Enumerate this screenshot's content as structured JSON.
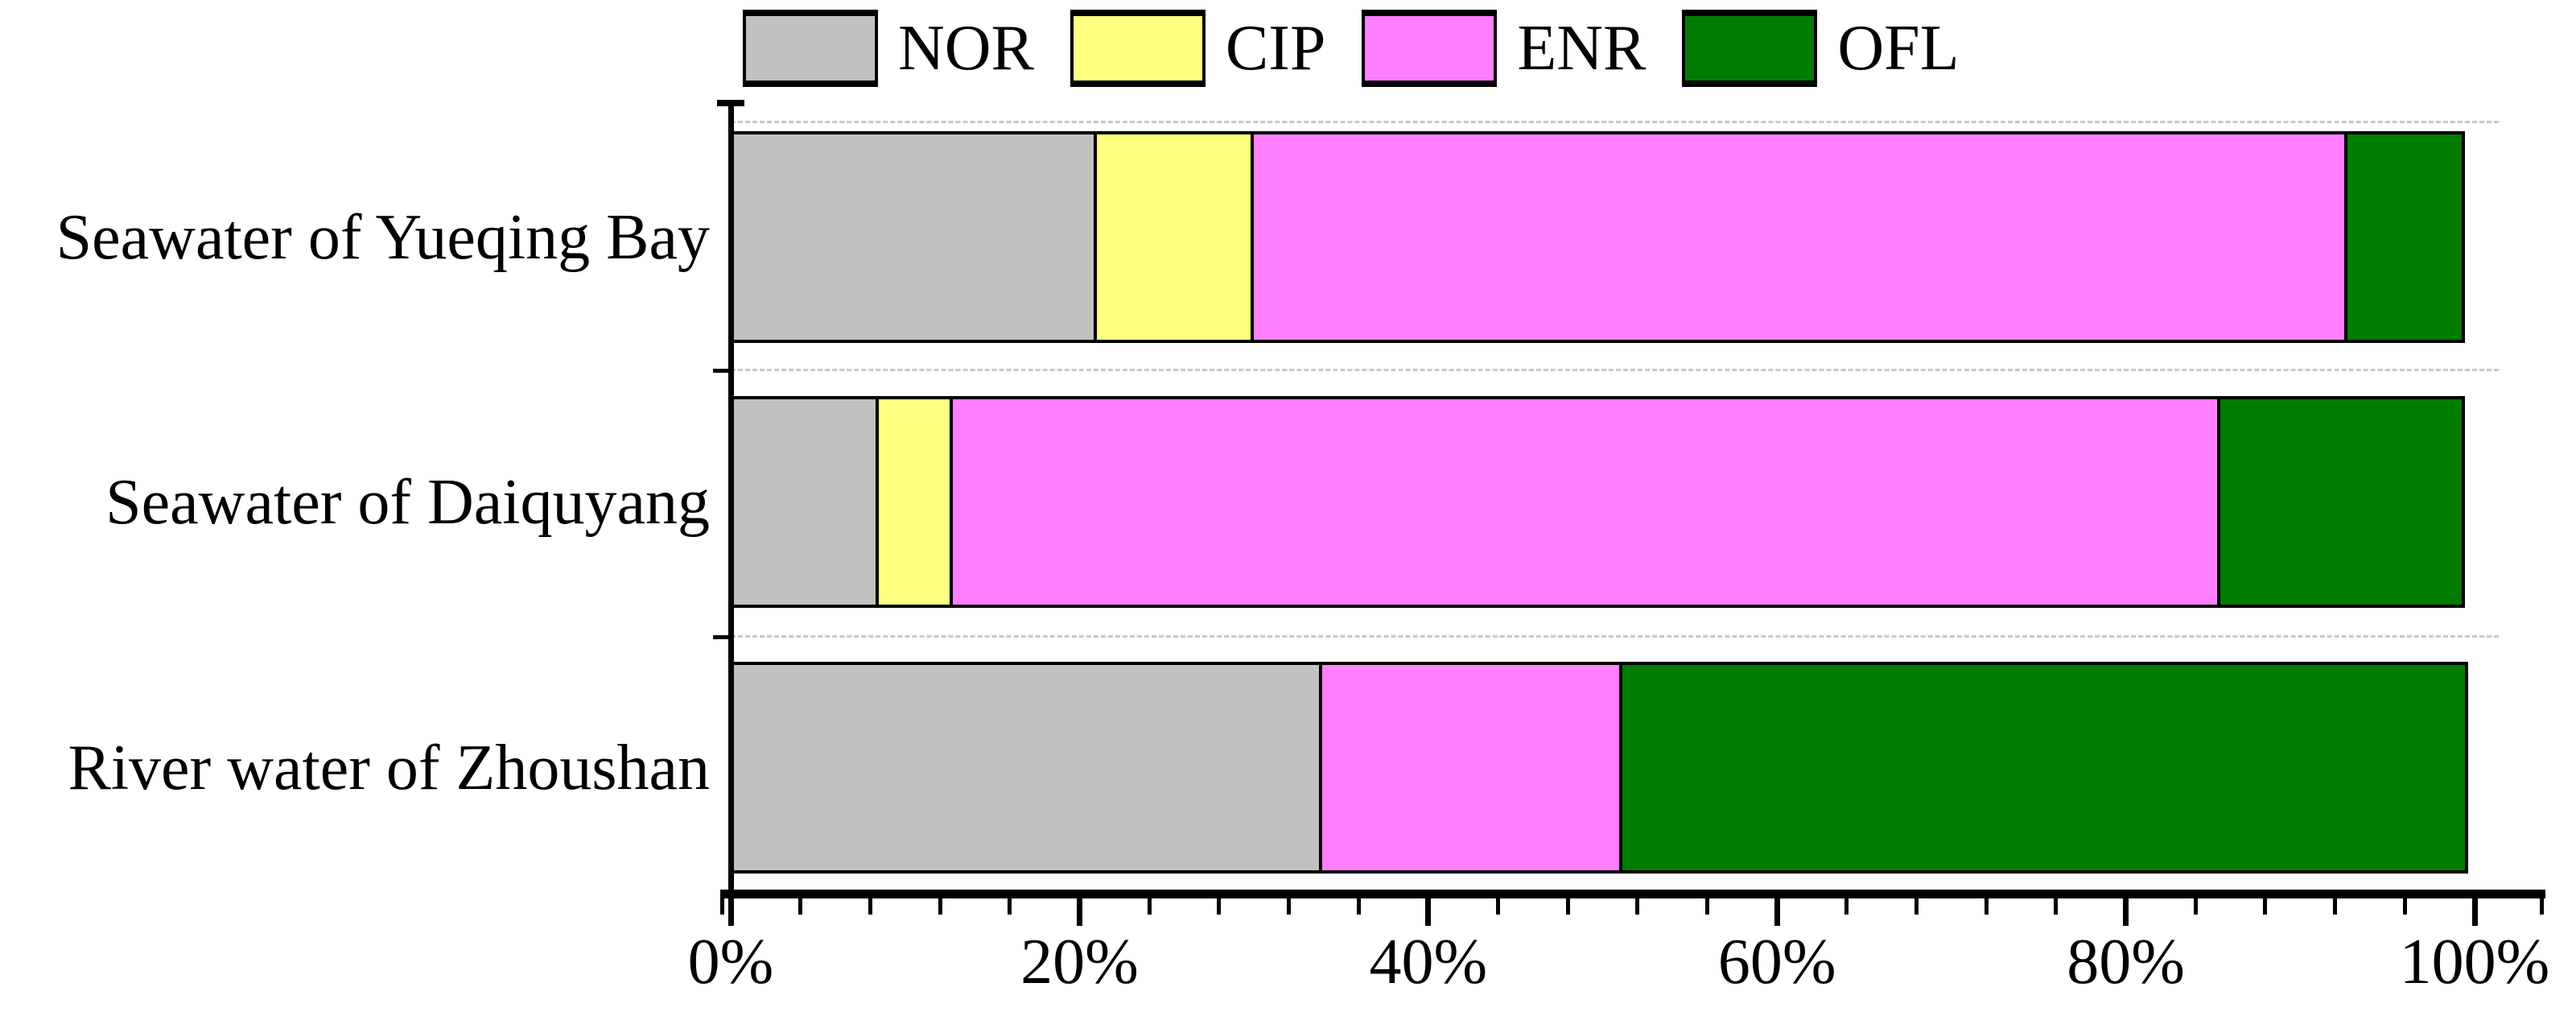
{
  "chart_data": {
    "type": "bar",
    "stacked": true,
    "orientation": "horizontal",
    "title": "",
    "categories": [
      "Seawater of Yueqing Bay",
      "Seawater of Daiquyang",
      "River water of Zhoushan"
    ],
    "series": [
      {
        "name": "NOR",
        "color": "#c1c1c1",
        "values": [
          21.0,
          8.5,
          33.9
        ]
      },
      {
        "name": "CIP",
        "color": "#ffff80",
        "values": [
          9.2,
          4.4,
          0.0
        ]
      },
      {
        "name": "ENR",
        "color": "#ff80ff",
        "values": [
          62.9,
          72.9,
          17.4
        ]
      },
      {
        "name": "OFL",
        "color": "#007d00",
        "values": [
          6.9,
          14.2,
          48.7
        ]
      }
    ],
    "x_axis": {
      "unit": "%",
      "min": 0,
      "max": 100,
      "major_tick_labels": [
        "0%",
        "20%",
        "40%",
        "60%",
        "80%",
        "100%"
      ],
      "major_tick_percents": [
        0,
        20,
        40,
        60,
        80,
        100
      ],
      "minor_tick_step_percent": 4
    },
    "legend": {
      "position": "top",
      "entries": [
        "NOR",
        "CIP",
        "ENR",
        "OFL"
      ]
    },
    "grid": {
      "style": "dashed-category-separators",
      "color": "#c8c8c8"
    },
    "colors": {
      "axis": "#000000",
      "bar_border": "#000000",
      "background": "#ffffff"
    }
  }
}
